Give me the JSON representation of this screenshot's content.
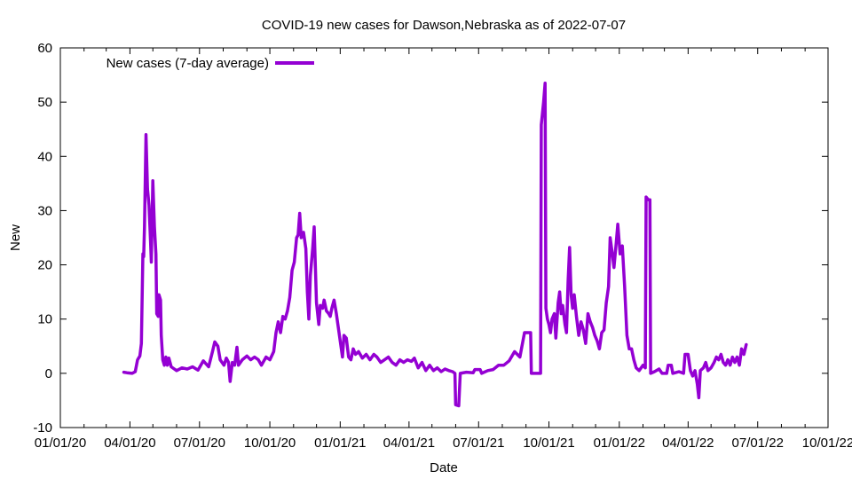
{
  "chart_data": {
    "type": "line",
    "title": "COVID-19 new cases for Dawson,Nebraska as of 2022-07-07",
    "xlabel": "Date",
    "ylabel": "New",
    "xlim": [
      "2020-01-01",
      "2022-10-01"
    ],
    "ylim": [
      -10,
      60
    ],
    "x_ticks": [
      "01/01/20",
      "04/01/20",
      "07/01/20",
      "10/01/20",
      "01/01/21",
      "04/01/21",
      "07/01/21",
      "10/01/21",
      "01/01/22",
      "04/01/22",
      "07/01/22",
      "10/01/22"
    ],
    "y_ticks": [
      -10,
      0,
      10,
      20,
      30,
      40,
      50,
      60
    ],
    "grid": false,
    "legend_position": "top-left",
    "series": [
      {
        "name": "New cases (7-day average)",
        "color": "#9400d3",
        "points": [
          [
            "2020-03-24",
            0.2
          ],
          [
            "2020-03-28",
            0.1
          ],
          [
            "2020-04-04",
            0
          ],
          [
            "2020-04-08",
            0.3
          ],
          [
            "2020-04-11",
            2.5
          ],
          [
            "2020-04-14",
            3.2
          ],
          [
            "2020-04-16",
            5.5
          ],
          [
            "2020-04-18",
            22
          ],
          [
            "2020-04-19",
            21.5
          ],
          [
            "2020-04-20",
            27
          ],
          [
            "2020-04-22",
            44
          ],
          [
            "2020-04-24",
            34
          ],
          [
            "2020-04-26",
            31
          ],
          [
            "2020-04-28",
            24
          ],
          [
            "2020-04-29",
            20.5
          ],
          [
            "2020-05-01",
            35.5
          ],
          [
            "2020-05-03",
            27
          ],
          [
            "2020-05-05",
            22
          ],
          [
            "2020-05-06",
            11
          ],
          [
            "2020-05-08",
            10.5
          ],
          [
            "2020-05-09",
            14.5
          ],
          [
            "2020-05-11",
            13.5
          ],
          [
            "2020-05-12",
            7
          ],
          [
            "2020-05-14",
            2.5
          ],
          [
            "2020-05-16",
            1.5
          ],
          [
            "2020-05-18",
            3
          ],
          [
            "2020-05-20",
            1.5
          ],
          [
            "2020-05-22",
            2.8
          ],
          [
            "2020-05-25",
            1.2
          ],
          [
            "2020-06-01",
            0.5
          ],
          [
            "2020-06-08",
            1
          ],
          [
            "2020-06-15",
            0.8
          ],
          [
            "2020-06-22",
            1.2
          ],
          [
            "2020-06-29",
            0.6
          ],
          [
            "2020-07-06",
            2.3
          ],
          [
            "2020-07-13",
            1.2
          ],
          [
            "2020-07-18",
            4
          ],
          [
            "2020-07-21",
            5.8
          ],
          [
            "2020-07-25",
            5
          ],
          [
            "2020-07-28",
            2.5
          ],
          [
            "2020-08-02",
            1.5
          ],
          [
            "2020-08-05",
            2.8
          ],
          [
            "2020-08-08",
            2
          ],
          [
            "2020-08-10",
            -1.5
          ],
          [
            "2020-08-13",
            2
          ],
          [
            "2020-08-16",
            1.5
          ],
          [
            "2020-08-19",
            4.8
          ],
          [
            "2020-08-21",
            1.5
          ],
          [
            "2020-08-26",
            2.5
          ],
          [
            "2020-09-01",
            3.2
          ],
          [
            "2020-09-06",
            2.5
          ],
          [
            "2020-09-11",
            3
          ],
          [
            "2020-09-16",
            2.5
          ],
          [
            "2020-09-20",
            1.5
          ],
          [
            "2020-09-26",
            3
          ],
          [
            "2020-10-01",
            2.5
          ],
          [
            "2020-10-06",
            4
          ],
          [
            "2020-10-09",
            7.5
          ],
          [
            "2020-10-12",
            9.5
          ],
          [
            "2020-10-15",
            7.5
          ],
          [
            "2020-10-18",
            10.5
          ],
          [
            "2020-10-21",
            10
          ],
          [
            "2020-10-24",
            11.5
          ],
          [
            "2020-10-27",
            14
          ],
          [
            "2020-10-30",
            19
          ],
          [
            "2020-11-02",
            20.5
          ],
          [
            "2020-11-05",
            25
          ],
          [
            "2020-11-07",
            25.5
          ],
          [
            "2020-11-09",
            29.5
          ],
          [
            "2020-11-11",
            25
          ],
          [
            "2020-11-14",
            26
          ],
          [
            "2020-11-17",
            23
          ],
          [
            "2020-11-19",
            15
          ],
          [
            "2020-11-21",
            10
          ],
          [
            "2020-11-23",
            18
          ],
          [
            "2020-11-26",
            23
          ],
          [
            "2020-11-28",
            27
          ],
          [
            "2020-12-01",
            13
          ],
          [
            "2020-12-04",
            9
          ],
          [
            "2020-12-06",
            12.5
          ],
          [
            "2020-12-09",
            12
          ],
          [
            "2020-12-11",
            13.5
          ],
          [
            "2020-12-14",
            11.5
          ],
          [
            "2020-12-17",
            11
          ],
          [
            "2020-12-19",
            10.5
          ],
          [
            "2020-12-21",
            12
          ],
          [
            "2020-12-24",
            13.5
          ],
          [
            "2020-12-27",
            11
          ],
          [
            "2020-12-29",
            9
          ],
          [
            "2021-01-01",
            6
          ],
          [
            "2021-01-04",
            3
          ],
          [
            "2021-01-06",
            7
          ],
          [
            "2021-01-09",
            6.5
          ],
          [
            "2021-01-12",
            3
          ],
          [
            "2021-01-15",
            2.5
          ],
          [
            "2021-01-18",
            4.5
          ],
          [
            "2021-01-21",
            3.5
          ],
          [
            "2021-01-25",
            4
          ],
          [
            "2021-01-30",
            2.8
          ],
          [
            "2021-02-04",
            3.5
          ],
          [
            "2021-02-09",
            2.5
          ],
          [
            "2021-02-14",
            3.5
          ],
          [
            "2021-02-18",
            3
          ],
          [
            "2021-02-23",
            2
          ],
          [
            "2021-02-28",
            2.5
          ],
          [
            "2021-03-05",
            3
          ],
          [
            "2021-03-10",
            2
          ],
          [
            "2021-03-15",
            1.5
          ],
          [
            "2021-03-20",
            2.5
          ],
          [
            "2021-03-25",
            2
          ],
          [
            "2021-03-30",
            2.5
          ],
          [
            "2021-04-04",
            2.2
          ],
          [
            "2021-04-08",
            2.8
          ],
          [
            "2021-04-13",
            1
          ],
          [
            "2021-04-18",
            2
          ],
          [
            "2021-04-23",
            0.5
          ],
          [
            "2021-04-28",
            1.5
          ],
          [
            "2021-05-03",
            0.5
          ],
          [
            "2021-05-08",
            1
          ],
          [
            "2021-05-13",
            0.3
          ],
          [
            "2021-05-18",
            0.8
          ],
          [
            "2021-05-23",
            0.5
          ],
          [
            "2021-05-28",
            0.3
          ],
          [
            "2021-05-31",
            0
          ],
          [
            "2021-06-01",
            -5.8
          ],
          [
            "2021-06-05",
            -6
          ],
          [
            "2021-06-07",
            0
          ],
          [
            "2021-06-15",
            0.2
          ],
          [
            "2021-06-24",
            0.1
          ],
          [
            "2021-06-26",
            0.7
          ],
          [
            "2021-07-03",
            0.7
          ],
          [
            "2021-07-05",
            0
          ],
          [
            "2021-07-13",
            0.5
          ],
          [
            "2021-07-20",
            0.7
          ],
          [
            "2021-07-27",
            1.5
          ],
          [
            "2021-08-03",
            1.5
          ],
          [
            "2021-08-10",
            2.3
          ],
          [
            "2021-08-17",
            4
          ],
          [
            "2021-08-24",
            3
          ],
          [
            "2021-08-30",
            7.5
          ],
          [
            "2021-09-07",
            7.5
          ],
          [
            "2021-09-08",
            0
          ],
          [
            "2021-09-20",
            0
          ],
          [
            "2021-09-21",
            45.8
          ],
          [
            "2021-09-24",
            50
          ],
          [
            "2021-09-26",
            53.5
          ],
          [
            "2021-09-27",
            12
          ],
          [
            "2021-09-29",
            10
          ],
          [
            "2021-10-01",
            9
          ],
          [
            "2021-10-03",
            7.5
          ],
          [
            "2021-10-05",
            10
          ],
          [
            "2021-10-08",
            11
          ],
          [
            "2021-10-10",
            6.5
          ],
          [
            "2021-10-13",
            13
          ],
          [
            "2021-10-15",
            15
          ],
          [
            "2021-10-17",
            11
          ],
          [
            "2021-10-19",
            12.5
          ],
          [
            "2021-10-22",
            9
          ],
          [
            "2021-10-24",
            7.5
          ],
          [
            "2021-10-26",
            17
          ],
          [
            "2021-10-28",
            23.2
          ],
          [
            "2021-10-30",
            14.5
          ],
          [
            "2021-11-01",
            12
          ],
          [
            "2021-11-03",
            14.5
          ],
          [
            "2021-11-06",
            10.5
          ],
          [
            "2021-11-09",
            7
          ],
          [
            "2021-11-12",
            9.5
          ],
          [
            "2021-11-15",
            8
          ],
          [
            "2021-11-18",
            5.5
          ],
          [
            "2021-11-21",
            11
          ],
          [
            "2021-11-24",
            9.5
          ],
          [
            "2021-11-27",
            8.5
          ],
          [
            "2021-11-30",
            7
          ],
          [
            "2021-12-03",
            6
          ],
          [
            "2021-12-06",
            4.5
          ],
          [
            "2021-12-09",
            7.5
          ],
          [
            "2021-12-12",
            8
          ],
          [
            "2021-12-15",
            13
          ],
          [
            "2021-12-18",
            16
          ],
          [
            "2021-12-20",
            25
          ],
          [
            "2021-12-23",
            22
          ],
          [
            "2021-12-25",
            19.5
          ],
          [
            "2021-12-28",
            24
          ],
          [
            "2021-12-30",
            27.5
          ],
          [
            "2022-01-02",
            22
          ],
          [
            "2022-01-05",
            23.5
          ],
          [
            "2022-01-08",
            16
          ],
          [
            "2022-01-11",
            7
          ],
          [
            "2022-01-14",
            4.5
          ],
          [
            "2022-01-17",
            4.5
          ],
          [
            "2022-01-20",
            2.5
          ],
          [
            "2022-01-23",
            1
          ],
          [
            "2022-01-27",
            0.5
          ],
          [
            "2022-02-01",
            1.5
          ],
          [
            "2022-02-04",
            1
          ],
          [
            "2022-02-05",
            32.5
          ],
          [
            "2022-02-08",
            32
          ],
          [
            "2022-02-10",
            32
          ],
          [
            "2022-02-11",
            0
          ],
          [
            "2022-02-16",
            0.3
          ],
          [
            "2022-02-22",
            0.8
          ],
          [
            "2022-02-26",
            0
          ],
          [
            "2022-03-04",
            0
          ],
          [
            "2022-03-06",
            1.5
          ],
          [
            "2022-03-10",
            1.5
          ],
          [
            "2022-03-12",
            0
          ],
          [
            "2022-03-20",
            0.3
          ],
          [
            "2022-03-26",
            0
          ],
          [
            "2022-03-28",
            3.5
          ],
          [
            "2022-04-01",
            3.5
          ],
          [
            "2022-04-04",
            0.5
          ],
          [
            "2022-04-07",
            -0.5
          ],
          [
            "2022-04-10",
            0.5
          ],
          [
            "2022-04-13",
            -2
          ],
          [
            "2022-04-15",
            -4.5
          ],
          [
            "2022-04-17",
            0.5
          ],
          [
            "2022-04-21",
            1
          ],
          [
            "2022-04-24",
            2
          ],
          [
            "2022-04-27",
            0.5
          ],
          [
            "2022-05-01",
            1
          ],
          [
            "2022-05-05",
            2
          ],
          [
            "2022-05-08",
            3
          ],
          [
            "2022-05-11",
            2.5
          ],
          [
            "2022-05-14",
            3.5
          ],
          [
            "2022-05-17",
            2
          ],
          [
            "2022-05-20",
            1.5
          ],
          [
            "2022-05-23",
            2.5
          ],
          [
            "2022-05-26",
            1.5
          ],
          [
            "2022-05-29",
            3
          ],
          [
            "2022-06-01",
            2
          ],
          [
            "2022-06-04",
            3
          ],
          [
            "2022-06-07",
            1.5
          ],
          [
            "2022-06-10",
            4.5
          ],
          [
            "2022-06-13",
            3.5
          ],
          [
            "2022-06-16",
            5.3
          ]
        ]
      }
    ]
  }
}
